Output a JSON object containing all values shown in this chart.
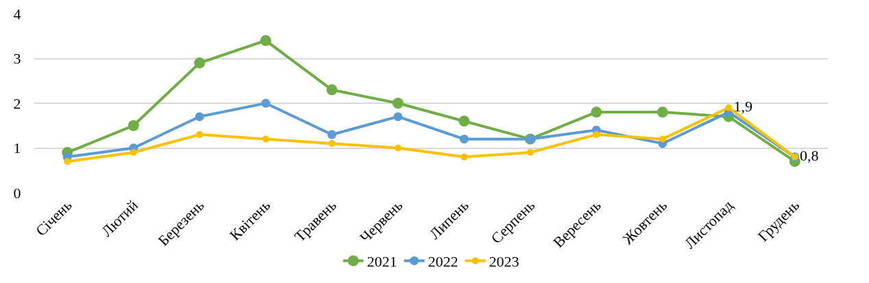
{
  "chart_data": {
    "type": "line",
    "categories": [
      "Січень",
      "Лютий",
      "Березень",
      "Квітень",
      "Травень",
      "Червень",
      "Липень",
      "Серпень",
      "Вересень",
      "Жовтень",
      "Листопад",
      "Грудень"
    ],
    "series": [
      {
        "name": "2021",
        "color": "#70ad47",
        "values": [
          0.9,
          1.5,
          2.9,
          3.4,
          2.3,
          2.0,
          1.6,
          1.2,
          1.8,
          1.8,
          1.7,
          0.7
        ]
      },
      {
        "name": "2022",
        "color": "#5b9bd5",
        "values": [
          0.8,
          1.0,
          1.7,
          2.0,
          1.3,
          1.7,
          1.2,
          1.2,
          1.4,
          1.1,
          1.8,
          0.8
        ]
      },
      {
        "name": "2023",
        "color": "#ffc000",
        "values": [
          0.7,
          0.9,
          1.3,
          1.2,
          1.1,
          1.0,
          0.8,
          0.9,
          1.3,
          1.2,
          1.9,
          0.8
        ],
        "value_labels": [
          null,
          null,
          null,
          null,
          null,
          null,
          null,
          null,
          null,
          null,
          "1,9",
          "0,8"
        ]
      }
    ],
    "ylim": [
      0,
      4
    ],
    "yticks": [
      0,
      1,
      2,
      3,
      4
    ],
    "grid": "y",
    "legend": "bottom",
    "marker": "circle",
    "line_style": "solid"
  }
}
